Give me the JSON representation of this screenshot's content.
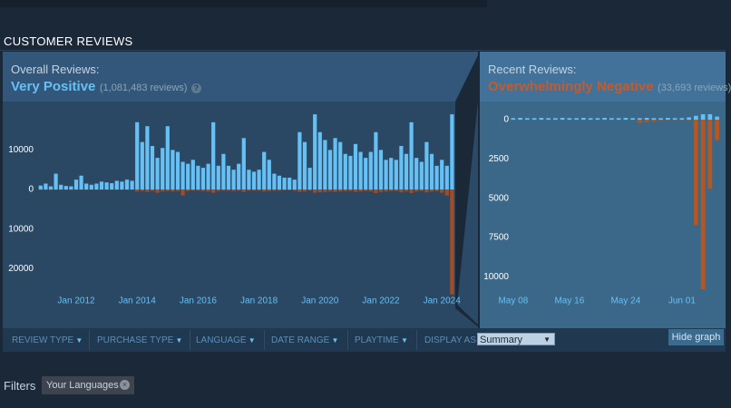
{
  "header": {
    "title": "CUSTOMER REVIEWS"
  },
  "overall": {
    "label": "Overall Reviews:",
    "rating": "Very Positive",
    "count": "(1,081,483 reviews)",
    "help": "?"
  },
  "recent": {
    "label": "Recent Reviews:",
    "rating": "Overwhelmingly Negative",
    "count": "(33,693 reviews)"
  },
  "filter_bar": {
    "items": [
      "REVIEW TYPE",
      "PURCHASE TYPE",
      "LANGUAGE",
      "DATE RANGE",
      "PLAYTIME"
    ],
    "display_label": "DISPLAY AS",
    "display_value": "Summary",
    "hide_button": "Hide graph"
  },
  "filters": {
    "label": "Filters",
    "chips": [
      "Your Languages"
    ]
  },
  "chart_data": [
    {
      "type": "bar",
      "categories": [
        null,
        null,
        null,
        null,
        null,
        null,
        null,
        "Jan 2012",
        null,
        null,
        null,
        null,
        null,
        null,
        null,
        null,
        null,
        null,
        null,
        "Jan 2014",
        null,
        null,
        null,
        null,
        null,
        null,
        null,
        null,
        null,
        null,
        null,
        "Jan 2016",
        null,
        null,
        null,
        null,
        null,
        null,
        null,
        null,
        null,
        null,
        null,
        "Jan 2018",
        null,
        null,
        null,
        null,
        null,
        null,
        null,
        null,
        null,
        null,
        null,
        "Jan 2020",
        null,
        null,
        null,
        null,
        null,
        null,
        null,
        null,
        null,
        null,
        null,
        "Jan 2022",
        null,
        null,
        null,
        null,
        null,
        null,
        null,
        null,
        null,
        null,
        null,
        "Jan 2024",
        null,
        null
      ],
      "series": [
        {
          "color": "#66c0f4",
          "values": [
            1000,
            1500,
            800,
            4000,
            1200,
            900,
            800,
            2500,
            3500,
            1500,
            1200,
            1500,
            2000,
            1800,
            1600,
            2200,
            2000,
            2500,
            2200,
            17000,
            12000,
            16000,
            11000,
            8000,
            10500,
            16000,
            10000,
            9500,
            7000,
            6500,
            7500,
            6000,
            5500,
            6500,
            17000,
            6000,
            9000,
            6000,
            5000,
            6500,
            13000,
            5000,
            4500,
            5000,
            9500,
            7500,
            4000,
            3500,
            3000,
            3000,
            2500,
            14500,
            12000,
            5500,
            19000,
            14500,
            12500,
            10000,
            13000,
            12000,
            9000,
            8500,
            11500,
            9500,
            8000,
            9500,
            14500,
            10000,
            7500,
            8000,
            7500,
            11000,
            9000,
            17000,
            8000,
            7000,
            12000,
            9000,
            6000,
            7500,
            6000,
            19000
          ]
        },
        {
          "color": "#a34c25",
          "values": [
            -100,
            -100,
            -100,
            -100,
            -100,
            -100,
            -100,
            -100,
            -100,
            -100,
            -100,
            -100,
            -100,
            -100,
            -100,
            -100,
            -100,
            -100,
            -100,
            -500,
            -400,
            -600,
            -400,
            -800,
            -500,
            -400,
            -500,
            -400,
            -1500,
            -400,
            -300,
            -300,
            -400,
            -500,
            -800,
            -400,
            -300,
            -300,
            -400,
            -300,
            -600,
            -300,
            -300,
            -300,
            -500,
            -400,
            -300,
            -300,
            -200,
            -200,
            -300,
            -600,
            -500,
            -300,
            -800,
            -700,
            -600,
            -500,
            -600,
            -500,
            -400,
            -400,
            -600,
            -500,
            -400,
            -500,
            -900,
            -600,
            -500,
            -400,
            -400,
            -700,
            -500,
            -900,
            -500,
            -400,
            -700,
            -500,
            -400,
            -800,
            -1500,
            -26500
          ]
        }
      ],
      "ylim": [
        -30000,
        22000
      ],
      "yticks": [
        0,
        10000,
        {
          "value": -10000,
          "label": "10000"
        },
        {
          "value": -20000,
          "label": "20000"
        }
      ]
    },
    {
      "type": "bar",
      "categories": [
        "May 08",
        null,
        null,
        null,
        null,
        null,
        null,
        null,
        "May 16",
        null,
        null,
        null,
        null,
        null,
        null,
        null,
        "May 24",
        null,
        null,
        null,
        null,
        null,
        null,
        null,
        "Jun 01",
        null,
        null,
        null,
        null,
        null
      ],
      "series": [
        {
          "color": "#66c0f4",
          "values": [
            100,
            120,
            100,
            100,
            120,
            100,
            100,
            120,
            100,
            100,
            120,
            100,
            100,
            120,
            100,
            100,
            120,
            100,
            100,
            120,
            100,
            100,
            120,
            100,
            100,
            150,
            250,
            350,
            350,
            200
          ]
        },
        {
          "color": "#b8561f",
          "values": [
            0,
            0,
            0,
            0,
            0,
            0,
            0,
            0,
            0,
            0,
            0,
            0,
            0,
            0,
            0,
            0,
            0,
            0,
            -200,
            -150,
            -100,
            -50,
            -30,
            -30,
            -30,
            -30,
            -6700,
            -10800,
            -4400,
            -1300
          ]
        }
      ],
      "ylim": [
        -12000,
        1100
      ],
      "yticks": [
        0,
        {
          "value": -2500,
          "label": "2500"
        },
        {
          "value": -5000,
          "label": "5000"
        },
        {
          "value": -7500,
          "label": "7500"
        },
        {
          "value": -10000,
          "label": "10000"
        }
      ]
    }
  ]
}
